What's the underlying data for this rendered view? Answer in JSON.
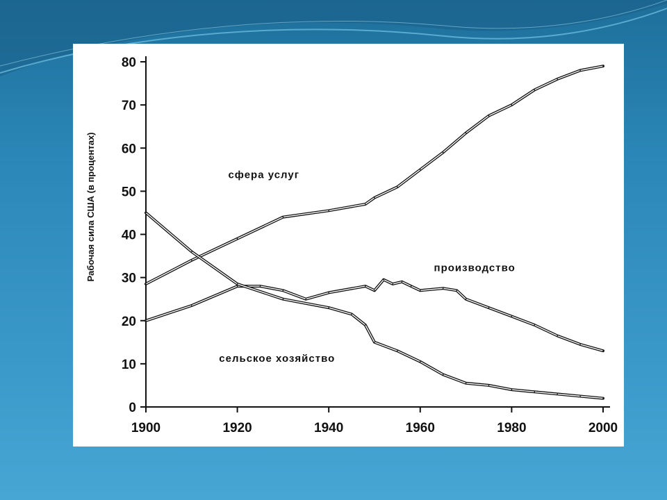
{
  "slide": {
    "bg_color": "#2a86b6",
    "wave_color": "#5fb8e0"
  },
  "chart_data": {
    "type": "line",
    "ylabel": "Рабочая сила США (в процентах)",
    "xlim": [
      1900,
      2000
    ],
    "ylim": [
      0,
      80
    ],
    "xticks": [
      "1900",
      "1920",
      "1940",
      "1960",
      "1980",
      "2000"
    ],
    "yticks": [
      "0",
      "10",
      "20",
      "30",
      "40",
      "50",
      "60",
      "70",
      "80"
    ],
    "grid": false,
    "series": [
      {
        "name": "сфера услуг",
        "x": [
          1900,
          1910,
          1920,
          1930,
          1940,
          1948,
          1950,
          1955,
          1960,
          1965,
          1970,
          1975,
          1980,
          1985,
          1990,
          1995,
          2000
        ],
        "values": [
          28.5,
          34,
          39,
          44,
          45.5,
          47,
          48.5,
          51,
          55,
          59,
          63.5,
          67.5,
          70,
          73.5,
          76,
          78,
          79
        ]
      },
      {
        "name": "производство",
        "x": [
          1900,
          1910,
          1920,
          1925,
          1930,
          1935,
          1940,
          1948,
          1950,
          1952,
          1954,
          1956,
          1958,
          1960,
          1965,
          1968,
          1970,
          1975,
          1980,
          1985,
          1990,
          1995,
          2000
        ],
        "values": [
          20,
          23.5,
          28,
          28,
          27,
          25,
          26.5,
          28,
          27,
          29.5,
          28.5,
          29,
          28,
          27,
          27.5,
          27,
          25,
          23,
          21,
          19,
          16.5,
          14.5,
          13
        ]
      },
      {
        "name": "сельское хозяйство",
        "x": [
          1900,
          1910,
          1920,
          1930,
          1940,
          1945,
          1948,
          1950,
          1955,
          1960,
          1965,
          1970,
          1975,
          1980,
          1985,
          1990,
          1995,
          2000
        ],
        "values": [
          45,
          36,
          28.5,
          25,
          23,
          21.5,
          19,
          15,
          13,
          10.5,
          7.5,
          5.5,
          5,
          4,
          3.5,
          3,
          2.5,
          2
        ]
      }
    ],
    "annotations": [
      {
        "text": "сфера услуг",
        "x": 1918,
        "y": 53
      },
      {
        "text": "производство",
        "x": 1963,
        "y": 31.5
      },
      {
        "text": "сельское хозяйство",
        "x": 1916,
        "y": 10.5
      }
    ]
  }
}
